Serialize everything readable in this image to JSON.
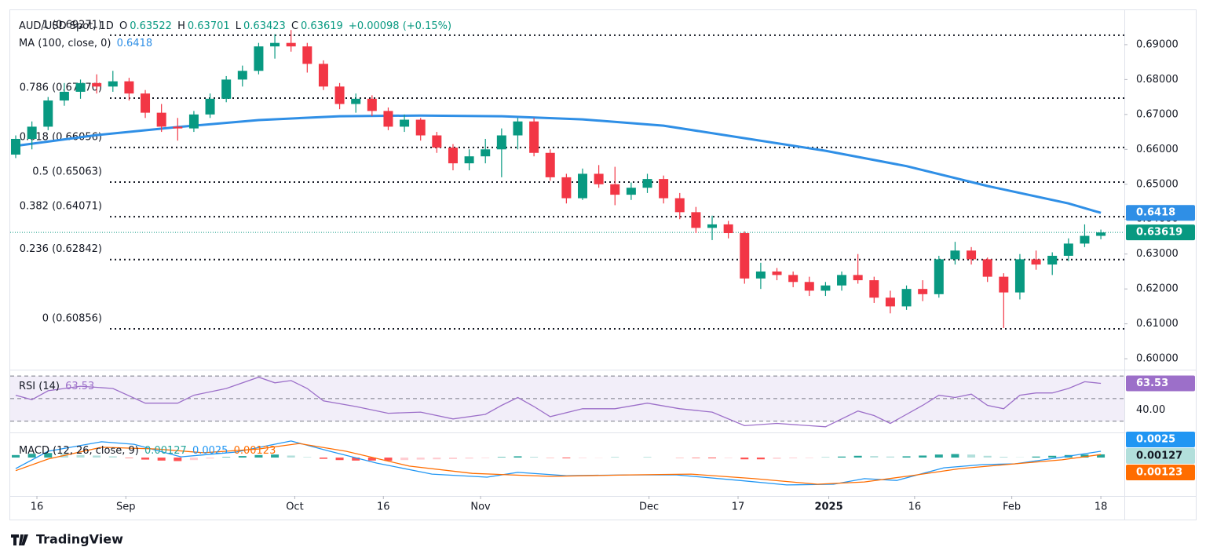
{
  "chart_data": {
    "type": "candlestick",
    "title": "AUD/USD Spot, 1D",
    "ohlc_labels": [
      "O",
      "H",
      "L",
      "C"
    ],
    "change_label": "+0.00098 (+0.15%)",
    "up_color": "#089981",
    "down_color": "#f23645",
    "candles": [
      [
        0.6585,
        0.664,
        0.6575,
        0.663
      ],
      [
        0.663,
        0.668,
        0.66,
        0.6665
      ],
      [
        0.6665,
        0.675,
        0.6655,
        0.674
      ],
      [
        0.674,
        0.679,
        0.6725,
        0.6765
      ],
      [
        0.6765,
        0.68,
        0.6745,
        0.679
      ],
      [
        0.679,
        0.6815,
        0.676,
        0.678
      ],
      [
        0.678,
        0.6825,
        0.6765,
        0.6795
      ],
      [
        0.6795,
        0.6805,
        0.674,
        0.676
      ],
      [
        0.676,
        0.677,
        0.669,
        0.6705
      ],
      [
        0.6705,
        0.673,
        0.665,
        0.6665
      ],
      [
        0.6665,
        0.669,
        0.6625,
        0.666
      ],
      [
        0.666,
        0.671,
        0.665,
        0.67
      ],
      [
        0.67,
        0.676,
        0.669,
        0.6745
      ],
      [
        0.6745,
        0.681,
        0.6735,
        0.68
      ],
      [
        0.68,
        0.684,
        0.678,
        0.6825
      ],
      [
        0.6825,
        0.6905,
        0.6815,
        0.6895
      ],
      [
        0.6895,
        0.693,
        0.686,
        0.6905
      ],
      [
        0.6905,
        0.6942,
        0.688,
        0.6895
      ],
      [
        0.6895,
        0.6905,
        0.682,
        0.6845
      ],
      [
        0.6845,
        0.6855,
        0.677,
        0.678
      ],
      [
        0.678,
        0.679,
        0.6715,
        0.673
      ],
      [
        0.673,
        0.676,
        0.6705,
        0.6745
      ],
      [
        0.6745,
        0.6755,
        0.6695,
        0.671
      ],
      [
        0.671,
        0.672,
        0.6655,
        0.6665
      ],
      [
        0.6665,
        0.67,
        0.665,
        0.6685
      ],
      [
        0.6685,
        0.669,
        0.6625,
        0.664
      ],
      [
        0.664,
        0.665,
        0.659,
        0.6605
      ],
      [
        0.6605,
        0.6615,
        0.654,
        0.656
      ],
      [
        0.656,
        0.66,
        0.654,
        0.658
      ],
      [
        0.658,
        0.663,
        0.656,
        0.66
      ],
      [
        0.66,
        0.666,
        0.652,
        0.664
      ],
      [
        0.664,
        0.669,
        0.66,
        0.668
      ],
      [
        0.668,
        0.669,
        0.658,
        0.659
      ],
      [
        0.659,
        0.66,
        0.651,
        0.652
      ],
      [
        0.652,
        0.653,
        0.6445,
        0.646
      ],
      [
        0.646,
        0.6545,
        0.6455,
        0.653
      ],
      [
        0.653,
        0.6555,
        0.649,
        0.65
      ],
      [
        0.65,
        0.655,
        0.644,
        0.647
      ],
      [
        0.647,
        0.6505,
        0.6455,
        0.649
      ],
      [
        0.649,
        0.653,
        0.6475,
        0.6515
      ],
      [
        0.6515,
        0.6525,
        0.6445,
        0.646
      ],
      [
        0.646,
        0.6475,
        0.64,
        0.642
      ],
      [
        0.642,
        0.6435,
        0.636,
        0.6375
      ],
      [
        0.6375,
        0.641,
        0.634,
        0.6385
      ],
      [
        0.6385,
        0.6395,
        0.6345,
        0.636
      ],
      [
        0.636,
        0.6365,
        0.6215,
        0.623
      ],
      [
        0.623,
        0.6275,
        0.62,
        0.625
      ],
      [
        0.625,
        0.626,
        0.6225,
        0.624
      ],
      [
        0.624,
        0.625,
        0.6205,
        0.622
      ],
      [
        0.622,
        0.6235,
        0.618,
        0.6195
      ],
      [
        0.6195,
        0.622,
        0.618,
        0.621
      ],
      [
        0.621,
        0.625,
        0.6195,
        0.624
      ],
      [
        0.624,
        0.63,
        0.6215,
        0.6225
      ],
      [
        0.6225,
        0.6235,
        0.616,
        0.6175
      ],
      [
        0.6175,
        0.6195,
        0.613,
        0.615
      ],
      [
        0.615,
        0.621,
        0.614,
        0.62
      ],
      [
        0.62,
        0.6225,
        0.6165,
        0.6185
      ],
      [
        0.6185,
        0.6295,
        0.6175,
        0.6285
      ],
      [
        0.6285,
        0.6335,
        0.627,
        0.631
      ],
      [
        0.631,
        0.632,
        0.627,
        0.6285
      ],
      [
        0.6285,
        0.629,
        0.622,
        0.6235
      ],
      [
        0.6235,
        0.6245,
        0.6088,
        0.619
      ],
      [
        0.619,
        0.63,
        0.617,
        0.6285
      ],
      [
        0.6285,
        0.631,
        0.6255,
        0.627
      ],
      [
        0.627,
        0.6305,
        0.624,
        0.6295
      ],
      [
        0.6295,
        0.6345,
        0.628,
        0.633
      ],
      [
        0.633,
        0.6385,
        0.632,
        0.63521
      ],
      [
        0.63522,
        0.63701,
        0.63423,
        0.63619
      ]
    ],
    "xlim": [
      -0.34,
      68.45
    ],
    "xticks": [
      {
        "value": 1.31,
        "label": "16"
      },
      {
        "value": 6.8,
        "label": "Sep"
      },
      {
        "value": 17.23,
        "label": "Oct"
      },
      {
        "value": 22.7,
        "label": "16"
      },
      {
        "value": 28.7,
        "label": "Nov"
      },
      {
        "value": 39.1,
        "label": "Dec"
      },
      {
        "value": 44.6,
        "label": "17"
      },
      {
        "value": 50.2,
        "label": "2025",
        "bold": true
      },
      {
        "value": 55.5,
        "label": "16"
      },
      {
        "value": 61.5,
        "label": "Feb"
      },
      {
        "value": 67.0,
        "label": "18"
      }
    ],
    "ylim": [
      0.5971,
      0.7001
    ],
    "yticks": [
      {
        "value": 0.69,
        "label": "0.69000"
      },
      {
        "value": 0.68,
        "label": "0.68000"
      },
      {
        "value": 0.67,
        "label": "0.67000"
      },
      {
        "value": 0.66,
        "label": "0.66000"
      },
      {
        "value": 0.65,
        "label": "0.65000"
      },
      {
        "value": 0.64,
        "label": "0.64000"
      },
      {
        "value": 0.63,
        "label": "0.63000"
      },
      {
        "value": 0.62,
        "label": "0.62000"
      },
      {
        "value": 0.61,
        "label": "0.61000"
      },
      {
        "value": 0.6,
        "label": "0.60000"
      }
    ],
    "ma": {
      "name": "MA (100, close, 0)",
      "color": "#2f8fe6",
      "x": [
        0,
        5,
        10,
        15,
        20,
        25,
        30,
        35,
        40,
        45,
        50,
        55,
        60,
        65,
        67
      ],
      "values": [
        0.661,
        0.6641,
        0.6664,
        0.6684,
        0.6695,
        0.6697,
        0.6695,
        0.6686,
        0.6668,
        0.6632,
        0.6596,
        0.6552,
        0.6495,
        0.6445,
        0.6418
      ]
    },
    "fib_color": "#131722",
    "fib_levels": [
      {
        "label": "1 (0.69271)",
        "value": 0.69271
      },
      {
        "label": "0.786 (0.67470)",
        "value": 0.6747
      },
      {
        "label": "0.618 (0.66056)",
        "value": 0.66056
      },
      {
        "label": "0.5 (0.65063)",
        "value": 0.65063
      },
      {
        "label": "0.382 (0.64071)",
        "value": 0.64071
      },
      {
        "label": "0.236 (0.62842)",
        "value": 0.62842
      },
      {
        "label": "0 (0.60856)",
        "value": 0.60856
      }
    ],
    "rsi": {
      "name": "RSI (14)",
      "color": "#9c6fc9",
      "ylim": [
        20,
        75
      ],
      "yticks": [
        {
          "value": 40,
          "label": "40.00"
        }
      ],
      "bands": [
        70,
        50,
        30
      ],
      "x": [
        0,
        1,
        2,
        4,
        6,
        8,
        10,
        11,
        13,
        15,
        16,
        17,
        18,
        19,
        21,
        23,
        25,
        27,
        29,
        30,
        31,
        32,
        33,
        35,
        37,
        39,
        41,
        43,
        45,
        47,
        49,
        50,
        52,
        53,
        54,
        56,
        57,
        58,
        59,
        60,
        61,
        62,
        63,
        64,
        65,
        66,
        67
      ],
      "values": [
        53,
        49,
        57,
        61,
        59,
        46,
        46,
        53,
        59,
        69,
        64,
        66,
        59,
        48,
        43,
        37,
        38,
        32,
        36,
        44,
        51,
        43,
        34,
        41,
        41,
        46,
        41,
        38,
        26,
        28,
        26,
        25,
        39,
        35,
        28,
        44,
        53,
        51,
        54,
        44,
        41,
        53,
        55,
        55,
        59,
        65,
        63.53
      ]
    },
    "macd": {
      "name": "MACD (12, 26, close, 9)",
      "ylim": [
        -0.0153,
        0.00969
      ],
      "macd": {
        "color": "#2196f3",
        "x": [
          0,
          2,
          5.3,
          7.3,
          10.2,
          13.6,
          17,
          19.4,
          22.3,
          25.7,
          29.1,
          31,
          34,
          37.9,
          40.8,
          44.7,
          47.6,
          50.5,
          52.4,
          54.4,
          57.3,
          59.7,
          61.7,
          64.1,
          67
        ],
        "values": [
          -0.0044,
          0.0025,
          0.0063,
          0.0053,
          0.0003,
          0.0022,
          0.0066,
          0.0025,
          -0.0022,
          -0.0066,
          -0.0078,
          -0.0059,
          -0.0072,
          -0.0069,
          -0.0069,
          -0.0091,
          -0.0109,
          -0.0106,
          -0.0084,
          -0.0091,
          -0.0041,
          -0.0028,
          -0.0025,
          -0.0003,
          0.0025
        ]
      },
      "signal": {
        "color": "#ff6d00",
        "x": [
          0,
          2,
          5.3,
          8.7,
          11.6,
          15,
          17.5,
          20.4,
          24.3,
          28.2,
          33,
          37.9,
          41.7,
          45.6,
          49.5,
          52.4,
          55.3,
          58.3,
          61.7,
          64.6,
          67
        ],
        "values": [
          -0.0052,
          -0.0006,
          0.0041,
          0.0034,
          0.0019,
          0.0034,
          0.0056,
          0.0025,
          -0.0034,
          -0.0063,
          -0.0075,
          -0.0069,
          -0.0066,
          -0.0084,
          -0.0106,
          -0.0097,
          -0.0072,
          -0.0044,
          -0.0025,
          -0.0009,
          0.00123
        ]
      },
      "histogram": {
        "colors": [
          "#26a69a",
          "#b2dfdb",
          "#ffcdd2",
          "#ff5252"
        ],
        "values": [
          0.001,
          0.0015,
          0.0018,
          0.0015,
          0.001,
          0.0008,
          0.0005,
          -0.0002,
          -0.0008,
          -0.0012,
          -0.0014,
          -0.001,
          -0.0004,
          0.0002,
          0.0006,
          0.001,
          0.0012,
          0.0008,
          0.0002,
          -0.0005,
          -0.001,
          -0.0012,
          -0.0012,
          -0.0013,
          -0.001,
          -0.0008,
          -0.0007,
          -0.0006,
          -0.0004,
          -0.0002,
          0.0002,
          0.0005,
          0.0003,
          -0.0001,
          -0.0003,
          -0.0002,
          -0.0001,
          0.0001,
          0,
          0.0001,
          0,
          -0.0001,
          -0.0002,
          -0.0003,
          -0.0002,
          -0.0007,
          -0.0007,
          -0.0005,
          -0.0003,
          -0.0002,
          0.0001,
          0.0004,
          0.0007,
          0.0006,
          0.0004,
          0.0005,
          0.0008,
          0.0012,
          0.0014,
          0.0012,
          0.0007,
          0.0003,
          0.0001,
          0.0004,
          0.0007,
          0.001,
          0.0012,
          0.00127
        ]
      }
    },
    "watermark": "TradingView"
  }
}
